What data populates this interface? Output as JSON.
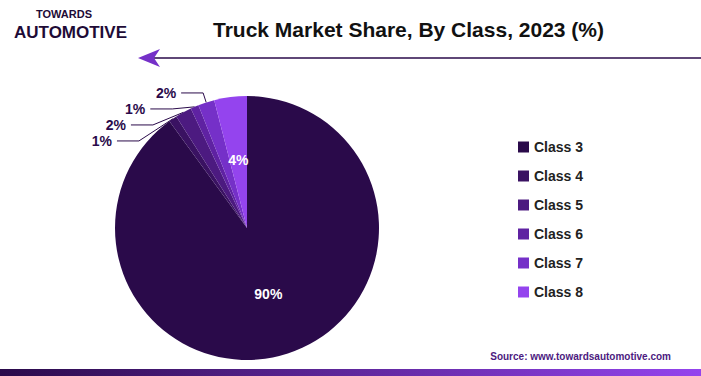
{
  "chart_data": {
    "type": "pie",
    "title": "Truck Market Share, By Class, 2023 (%)",
    "categories": [
      "Class 3",
      "Class 4",
      "Class 5",
      "Class 6",
      "Class 7",
      "Class 8"
    ],
    "values": [
      90,
      1,
      2,
      1,
      2,
      4
    ],
    "value_labels": [
      "90%",
      "1%",
      "2%",
      "1%",
      "2%",
      "4%"
    ],
    "colors": [
      "#2a0a4a",
      "#3a1262",
      "#4c1a80",
      "#5f22a2",
      "#7530c8",
      "#9444ee"
    ],
    "data_labels": true,
    "legend": "right",
    "annotations": [
      "TOWARDS",
      "AUTOMOTIVE",
      "Source: www.towardsautomotive.com"
    ]
  }
}
